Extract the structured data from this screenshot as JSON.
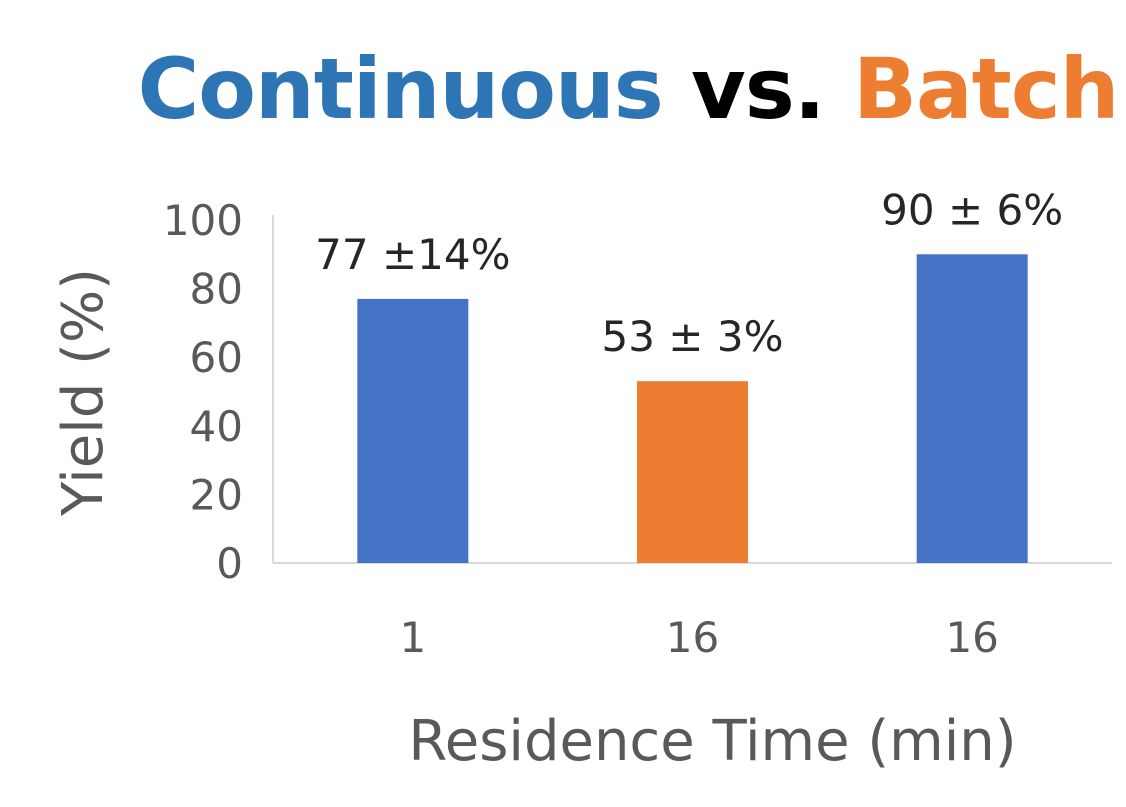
{
  "chart_data": {
    "type": "bar",
    "title_parts": [
      {
        "text": "Continuous",
        "color": "#2E75B6"
      },
      {
        "text": " vs. ",
        "color": "#000000"
      },
      {
        "text": "Batch",
        "color": "#ED7D31"
      }
    ],
    "categories": [
      "1",
      "16",
      "16"
    ],
    "values": [
      77,
      53,
      90
    ],
    "bar_colors": [
      "#4472C4",
      "#ED7D31",
      "#4472C4"
    ],
    "data_labels": [
      "77 ±14%",
      "53 ± 3%",
      "90 ± 6%"
    ],
    "xlabel": "Residence Time (min)",
    "ylabel": "Yield (%)",
    "ylim": [
      0,
      100
    ],
    "yticks": [
      0,
      20,
      40,
      60,
      80,
      100
    ],
    "grid": false,
    "legend": "none"
  }
}
